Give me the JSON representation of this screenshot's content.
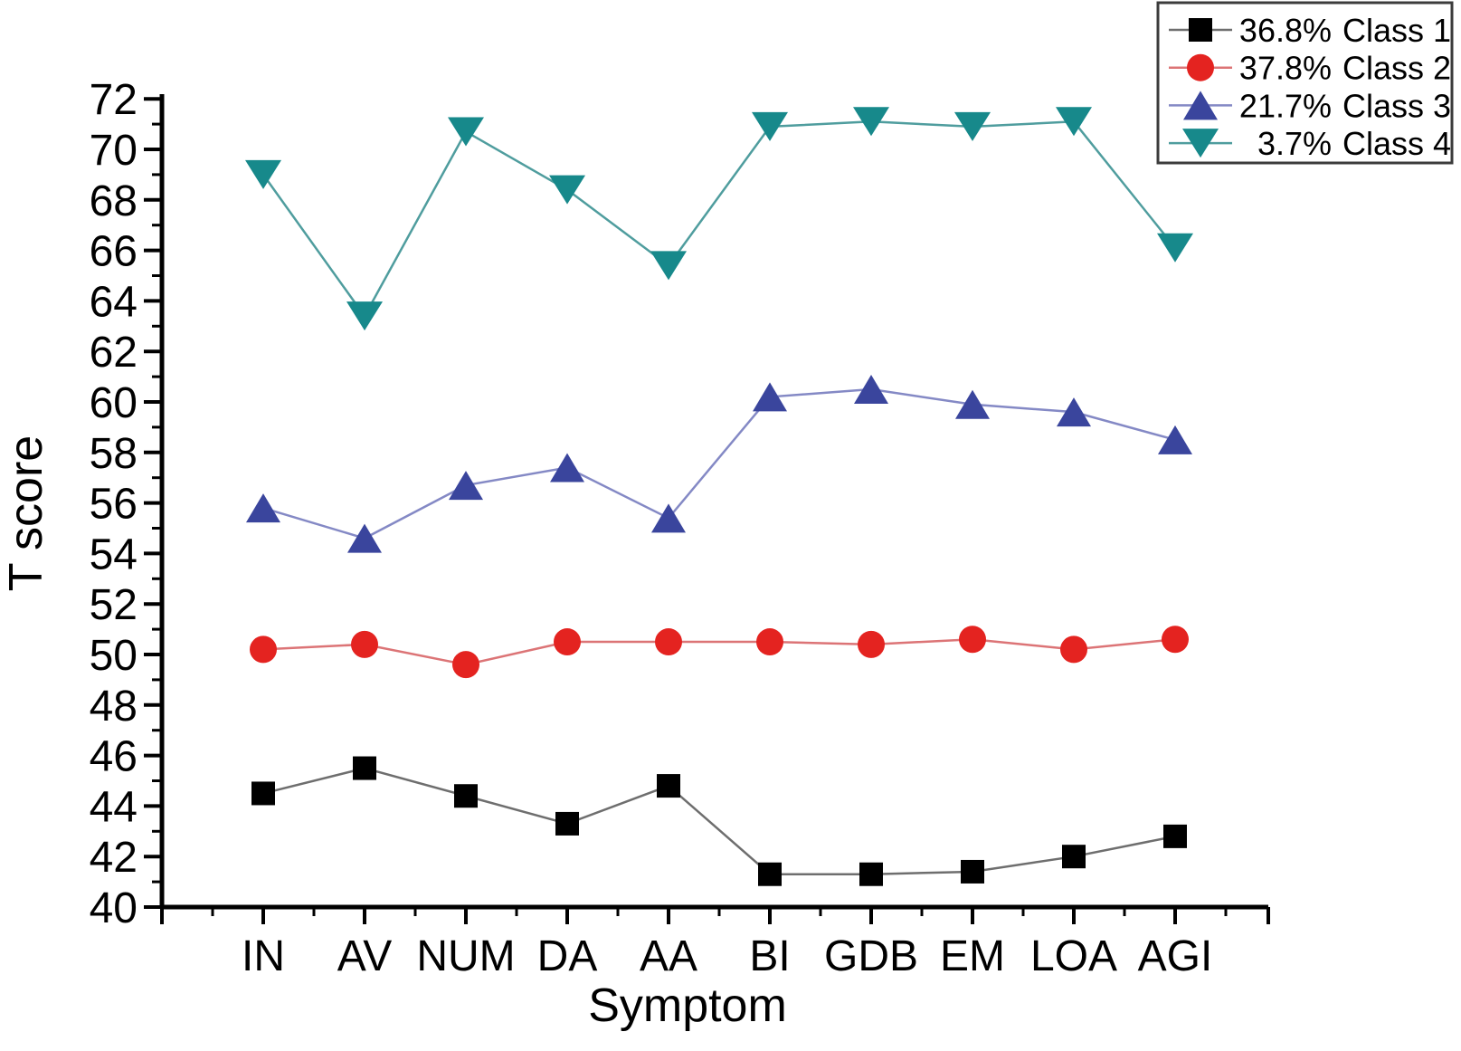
{
  "figure": {
    "background": "#ffffff",
    "axis_color": "#000000",
    "legend_border_color": "#3c3c3c"
  },
  "chart_data": {
    "type": "line",
    "title": "",
    "xlabel": "Symptom",
    "ylabel": "T score",
    "categories": [
      "IN",
      "AV",
      "NUM",
      "DA",
      "AA",
      "BI",
      "GDB",
      "EM",
      "LOA",
      "AGI"
    ],
    "ylim": [
      40,
      72
    ],
    "y_major_step": 2,
    "y_minor_step": 1,
    "grid": false,
    "legend_position": "top-right",
    "series": [
      {
        "name": "36.8% Class 1",
        "pct": "36.8%",
        "label": "Class 1",
        "marker": "square",
        "color": "#000000",
        "line_color": "#6e6e6e",
        "values": [
          44.5,
          45.5,
          44.4,
          43.3,
          44.8,
          41.3,
          41.3,
          41.4,
          42.0,
          42.8
        ]
      },
      {
        "name": "37.8% Class 2",
        "pct": "37.8%",
        "label": "Class 2",
        "marker": "circle",
        "color": "#e42320",
        "line_color": "#dc7476",
        "values": [
          50.2,
          50.4,
          49.6,
          50.5,
          50.5,
          50.5,
          50.4,
          50.6,
          50.2,
          50.6
        ]
      },
      {
        "name": "21.7% Class 3",
        "pct": "21.7%",
        "label": "Class 3",
        "marker": "triangle-up",
        "color": "#3a459d",
        "line_color": "#8489c5",
        "values": [
          55.8,
          54.6,
          56.7,
          57.4,
          55.4,
          60.2,
          60.5,
          59.9,
          59.6,
          58.5
        ]
      },
      {
        "name": "3.7% Class 4",
        "pct": "3.7%",
        "label": "Class 4",
        "marker": "triangle-down",
        "color": "#17898b",
        "line_color": "#4f9d9e",
        "values": [
          69.0,
          63.4,
          70.7,
          68.4,
          65.4,
          70.9,
          71.1,
          70.9,
          71.1,
          66.1
        ]
      }
    ]
  }
}
